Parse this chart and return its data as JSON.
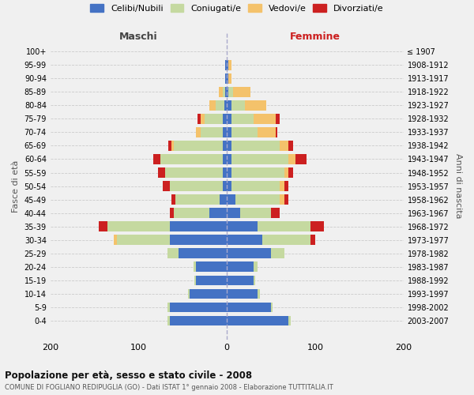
{
  "age_groups": [
    "0-4",
    "5-9",
    "10-14",
    "15-19",
    "20-24",
    "25-29",
    "30-34",
    "35-39",
    "40-44",
    "45-49",
    "50-54",
    "55-59",
    "60-64",
    "65-69",
    "70-74",
    "75-79",
    "80-84",
    "85-89",
    "90-94",
    "95-99",
    "100+"
  ],
  "birth_years": [
    "2003-2007",
    "1998-2002",
    "1993-1997",
    "1988-1992",
    "1983-1987",
    "1978-1982",
    "1973-1977",
    "1968-1972",
    "1963-1967",
    "1958-1962",
    "1953-1957",
    "1948-1952",
    "1943-1947",
    "1938-1942",
    "1933-1937",
    "1928-1932",
    "1923-1927",
    "1918-1922",
    "1913-1917",
    "1908-1912",
    "≤ 1907"
  ],
  "colors": {
    "celibi": "#4472c4",
    "coniugati": "#c5d9a0",
    "vedovi": "#f4c26b",
    "divorziati": "#cc2020"
  },
  "maschi": {
    "celibi": [
      65,
      65,
      42,
      35,
      35,
      55,
      65,
      65,
      20,
      8,
      5,
      5,
      5,
      5,
      5,
      5,
      3,
      2,
      2,
      2,
      0
    ],
    "coniugati": [
      2,
      2,
      2,
      2,
      3,
      12,
      60,
      70,
      40,
      50,
      60,
      65,
      70,
      55,
      25,
      20,
      10,
      3,
      0,
      0,
      0
    ],
    "vedovi": [
      0,
      0,
      0,
      0,
      0,
      0,
      3,
      0,
      0,
      0,
      0,
      0,
      0,
      3,
      5,
      5,
      7,
      4,
      0,
      0,
      0
    ],
    "divorziati": [
      0,
      0,
      0,
      0,
      0,
      0,
      0,
      10,
      5,
      5,
      8,
      8,
      8,
      3,
      0,
      3,
      0,
      0,
      0,
      0,
      0
    ]
  },
  "femmine": {
    "celibi": [
      70,
      50,
      35,
      30,
      30,
      50,
      40,
      35,
      15,
      10,
      5,
      5,
      5,
      5,
      5,
      5,
      5,
      2,
      2,
      2,
      0
    ],
    "coniugati": [
      2,
      2,
      2,
      2,
      5,
      15,
      55,
      60,
      35,
      50,
      55,
      60,
      65,
      55,
      30,
      25,
      15,
      5,
      0,
      0,
      0
    ],
    "vedovi": [
      0,
      0,
      0,
      0,
      0,
      0,
      0,
      0,
      0,
      5,
      5,
      5,
      8,
      10,
      20,
      25,
      25,
      20,
      3,
      3,
      0
    ],
    "divorziati": [
      0,
      0,
      0,
      0,
      0,
      0,
      5,
      15,
      10,
      5,
      5,
      5,
      12,
      5,
      2,
      5,
      0,
      0,
      0,
      0,
      0
    ]
  },
  "title1": "Popolazione per età, sesso e stato civile - 2008",
  "title2": "COMUNE DI FOGLIANO REDIPUGLIA (GO) - Dati ISTAT 1° gennaio 2008 - Elaborazione TUTTITALIA.IT",
  "xlabel_left": "Maschi",
  "xlabel_right": "Femmine",
  "ylabel_left": "Fasce di età",
  "ylabel_right": "Anni di nascita",
  "xlim": 200,
  "bg_color": "#f0f0f0",
  "legend_labels": [
    "Celibi/Nubili",
    "Coniugati/e",
    "Vedovi/e",
    "Divorziati/e"
  ]
}
